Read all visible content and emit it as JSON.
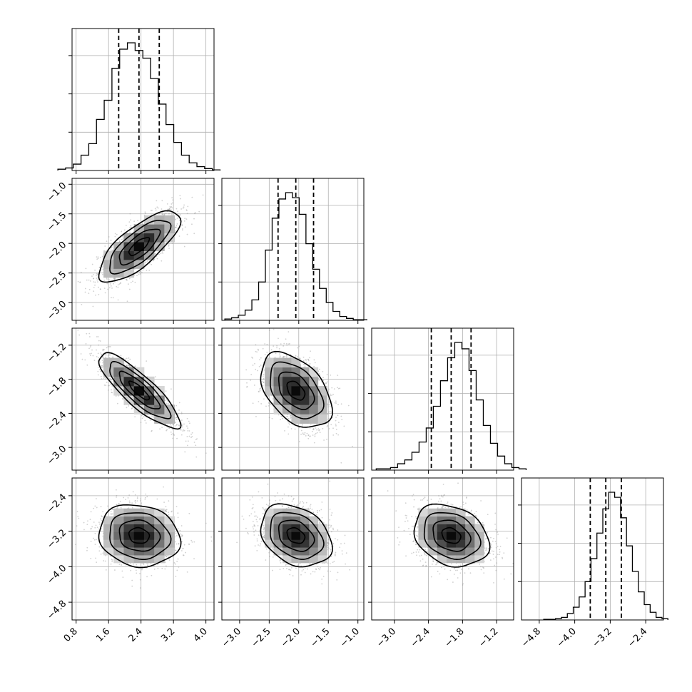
{
  "chart_data": {
    "type": "corner",
    "grid": true,
    "parameters": [
      {
        "index": 0,
        "mean": 2.35,
        "std": 0.5,
        "range": [
          0.7,
          4.2
        ],
        "quantiles": [
          1.85,
          2.35,
          2.85
        ],
        "ticks": [
          0.8,
          1.6,
          2.4,
          3.2,
          4.0
        ],
        "tick_labels": [
          "0.8",
          "1.6",
          "2.4",
          "3.2",
          "4.0"
        ]
      },
      {
        "index": 1,
        "mean": -2.05,
        "std": 0.3,
        "range": [
          -3.3,
          -0.9
        ],
        "quantiles": [
          -2.35,
          -2.05,
          -1.75
        ],
        "ticks": [
          -3.0,
          -2.5,
          -2.0,
          -1.5,
          -1.0
        ],
        "tick_labels": [
          "−3.0",
          "−2.5",
          "−2.0",
          "−1.5",
          "−1.0"
        ]
      },
      {
        "index": 2,
        "mean": -2.0,
        "std": 0.33,
        "range": [
          -3.4,
          -0.9
        ],
        "quantiles": [
          -2.35,
          -2.0,
          -1.65
        ],
        "ticks": [
          -3.0,
          -2.4,
          -1.8,
          -1.2
        ],
        "tick_labels": [
          "−3.0",
          "−2.4",
          "−1.8",
          "−1.2"
        ]
      },
      {
        "index": 3,
        "mean": -3.3,
        "std": 0.35,
        "range": [
          -5.2,
          -2.0
        ],
        "quantiles": [
          -3.65,
          -3.3,
          -2.95
        ],
        "ticks": [
          -4.8,
          -4.0,
          -3.2,
          -2.4
        ],
        "tick_labels": [
          "−4.8",
          "−4.0",
          "−3.2",
          "−2.4"
        ]
      }
    ],
    "correlations": {
      "1-0": 0.75,
      "2-0": -0.85,
      "2-1": -0.45,
      "3-0": -0.12,
      "3-1": -0.3,
      "3-2": -0.25
    },
    "histograms": [
      [
        0.01,
        0.02,
        0.05,
        0.12,
        0.21,
        0.4,
        0.55,
        0.8,
        0.95,
        1.0,
        0.94,
        0.88,
        0.72,
        0.52,
        0.36,
        0.22,
        0.12,
        0.06,
        0.03,
        0.015,
        0.005
      ],
      [
        0.01,
        0.02,
        0.04,
        0.08,
        0.16,
        0.3,
        0.55,
        0.8,
        0.95,
        1.0,
        0.96,
        0.83,
        0.6,
        0.4,
        0.25,
        0.14,
        0.07,
        0.03,
        0.015,
        0.005,
        0.005
      ],
      [
        0.01,
        0.01,
        0.02,
        0.05,
        0.08,
        0.14,
        0.22,
        0.33,
        0.5,
        0.7,
        0.88,
        1.0,
        0.95,
        0.78,
        0.55,
        0.35,
        0.21,
        0.11,
        0.05,
        0.02,
        0.01
      ],
      [
        0.005,
        0.005,
        0.01,
        0.02,
        0.05,
        0.1,
        0.18,
        0.3,
        0.48,
        0.68,
        0.87,
        1.0,
        0.96,
        0.8,
        0.58,
        0.38,
        0.22,
        0.12,
        0.06,
        0.02,
        0.01
      ]
    ]
  }
}
